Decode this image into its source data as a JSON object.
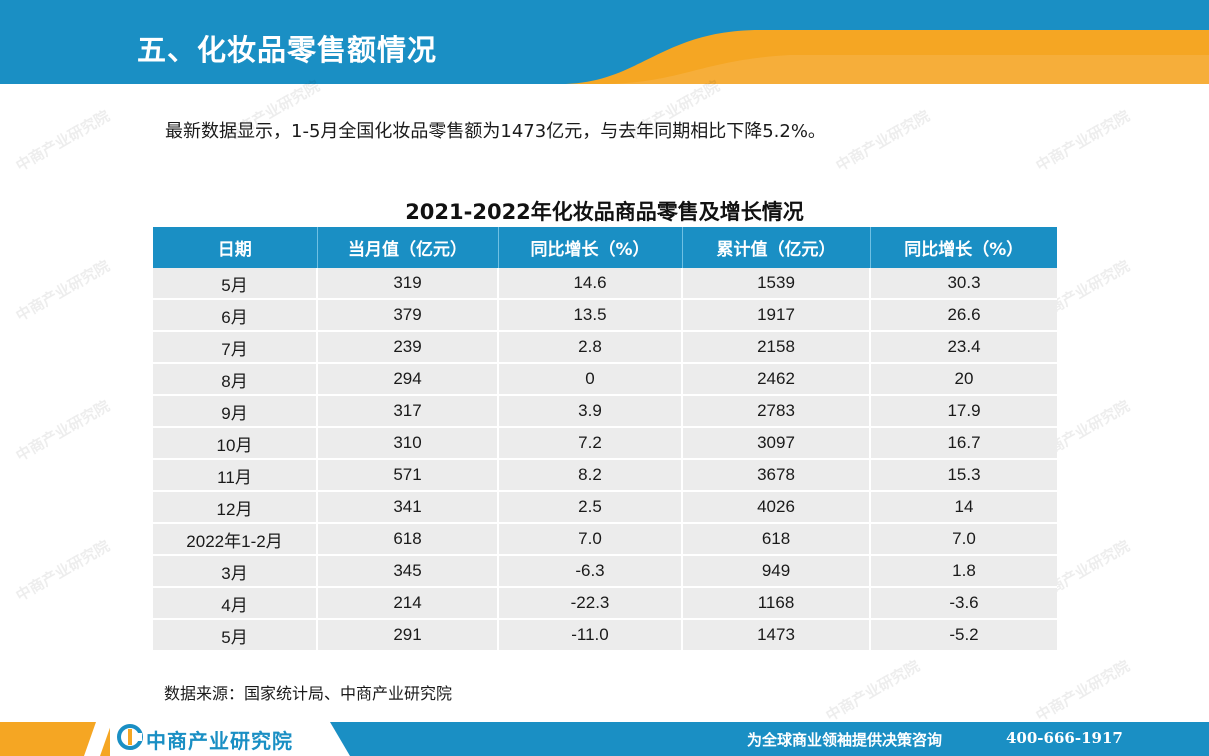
{
  "header": {
    "title": "五、化妆品零售额情况",
    "colors": {
      "blue": "#1a8fc4",
      "orange": "#f5a623"
    }
  },
  "summary": "最新数据显示，1-5月全国化妆品零售额为1473亿元，与去年同期相比下降5.2%。",
  "table": {
    "title": "2021-2022年化妆品商品零售及增长情况",
    "columns": [
      "日期",
      "当月值（亿元）",
      "同比增长（%）",
      "累计值（亿元）",
      "同比增长（%）"
    ],
    "rows": [
      [
        "5月",
        "319",
        "14.6",
        "1539",
        "30.3"
      ],
      [
        "6月",
        "379",
        "13.5",
        "1917",
        "26.6"
      ],
      [
        "7月",
        "239",
        "2.8",
        "2158",
        "23.4"
      ],
      [
        "8月",
        "294",
        "0",
        "2462",
        "20"
      ],
      [
        "9月",
        "317",
        "3.9",
        "2783",
        "17.9"
      ],
      [
        "10月",
        "310",
        "7.2",
        "3097",
        "16.7"
      ],
      [
        "11月",
        "571",
        "8.2",
        "3678",
        "15.3"
      ],
      [
        "12月",
        "341",
        "2.5",
        "4026",
        "14"
      ],
      [
        "2022年1-2月",
        "618",
        "7.0",
        "618",
        "7.0"
      ],
      [
        "3月",
        "345",
        "-6.3",
        "949",
        "1.8"
      ],
      [
        "4月",
        "214",
        "-22.3",
        "1168",
        "-3.6"
      ],
      [
        "5月",
        "291",
        "-11.0",
        "1473",
        "-5.2"
      ]
    ]
  },
  "source": "数据来源：国家统计局、中商产业研究院",
  "footer": {
    "logo_icon": "zhongshang-logo-icon",
    "logo_text": "中商产业研究院",
    "slogan": "为全球商业领袖提供决策咨询",
    "phone": "400-666-1917"
  },
  "watermark": "中商产业研究院"
}
